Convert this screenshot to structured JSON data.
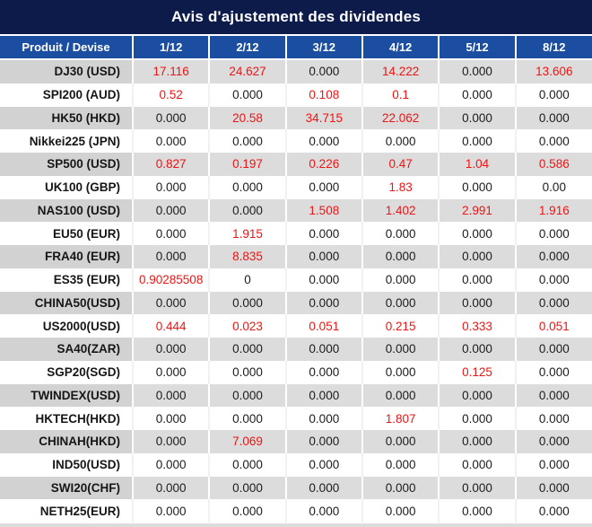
{
  "title": "Avis d'ajustement des dividendes",
  "colors": {
    "title_bg": "#0d1b4b",
    "header_bg": "#1b4da0",
    "header_text": "#ffffff",
    "alt_row_bg": "#dcdcdc",
    "alt_row_product_bg": "#d2d2d2",
    "nonzero_value_text": "#ee1414",
    "zero_value_text": "#1b1b1b",
    "product_text": "#161616"
  },
  "table": {
    "columns": [
      "Produit / Devise",
      "1/12",
      "2/12",
      "3/12",
      "4/12",
      "5/12",
      "8/12"
    ],
    "rows": [
      {
        "product": "DJ30 (USD)",
        "values": [
          "17.116",
          "24.627",
          "0.000",
          "14.222",
          "0.000",
          "13.606"
        ]
      },
      {
        "product": "SPI200 (AUD)",
        "values": [
          "0.52",
          "0.000",
          "0.108",
          "0.1",
          "0.000",
          "0.000"
        ]
      },
      {
        "product": "HK50 (HKD)",
        "values": [
          "0.000",
          "20.58",
          "34.715",
          "22.062",
          "0.000",
          "0.000"
        ]
      },
      {
        "product": "Nikkei225 (JPN)",
        "values": [
          "0.000",
          "0.000",
          "0.000",
          "0.000",
          "0.000",
          "0.000"
        ]
      },
      {
        "product": "SP500 (USD)",
        "values": [
          "0.827",
          "0.197",
          "0.226",
          "0.47",
          "1.04",
          "0.586"
        ]
      },
      {
        "product": "UK100 (GBP)",
        "values": [
          "0.000",
          "0.000",
          "0.000",
          "1.83",
          "0.000",
          "0.00"
        ]
      },
      {
        "product": "NAS100 (USD)",
        "values": [
          "0.000",
          "0.000",
          "1.508",
          "1.402",
          "2.991",
          "1.916"
        ]
      },
      {
        "product": "EU50 (EUR)",
        "values": [
          "0.000",
          "1.915",
          "0.000",
          "0.000",
          "0.000",
          "0.000"
        ]
      },
      {
        "product": "FRA40 (EUR)",
        "values": [
          "0.000",
          "8.835",
          "0.000",
          "0.000",
          "0.000",
          "0.000"
        ]
      },
      {
        "product": "ES35 (EUR)",
        "values": [
          "0.90285508",
          "0",
          "0.000",
          "0.000",
          "0.000",
          "0.000"
        ]
      },
      {
        "product": "CHINA50(USD)",
        "values": [
          "0.000",
          "0.000",
          "0.000",
          "0.000",
          "0.000",
          "0.000"
        ]
      },
      {
        "product": "US2000(USD)",
        "values": [
          "0.444",
          "0.023",
          "0.051",
          "0.215",
          "0.333",
          "0.051"
        ]
      },
      {
        "product": "SA40(ZAR)",
        "values": [
          "0.000",
          "0.000",
          "0.000",
          "0.000",
          "0.000",
          "0.000"
        ]
      },
      {
        "product": "SGP20(SGD)",
        "values": [
          "0.000",
          "0.000",
          "0.000",
          "0.000",
          "0.125",
          "0.000"
        ]
      },
      {
        "product": "TWINDEX(USD)",
        "values": [
          "0.000",
          "0.000",
          "0.000",
          "0.000",
          "0.000",
          "0.000"
        ]
      },
      {
        "product": "HKTECH(HKD)",
        "values": [
          "0.000",
          "0.000",
          "0.000",
          "1.807",
          "0.000",
          "0.000"
        ]
      },
      {
        "product": "CHINAH(HKD)",
        "values": [
          "0.000",
          "7.069",
          "0.000",
          "0.000",
          "0.000",
          "0.000"
        ]
      },
      {
        "product": "IND50(USD)",
        "values": [
          "0.000",
          "0.000",
          "0.000",
          "0.000",
          "0.000",
          "0.000"
        ]
      },
      {
        "product": "SWI20(CHF)",
        "values": [
          "0.000",
          "0.000",
          "0.000",
          "0.000",
          "0.000",
          "0.000"
        ]
      },
      {
        "product": "NETH25(EUR)",
        "values": [
          "0.000",
          "0.000",
          "0.000",
          "0.000",
          "0.000",
          "0.000"
        ]
      }
    ]
  }
}
